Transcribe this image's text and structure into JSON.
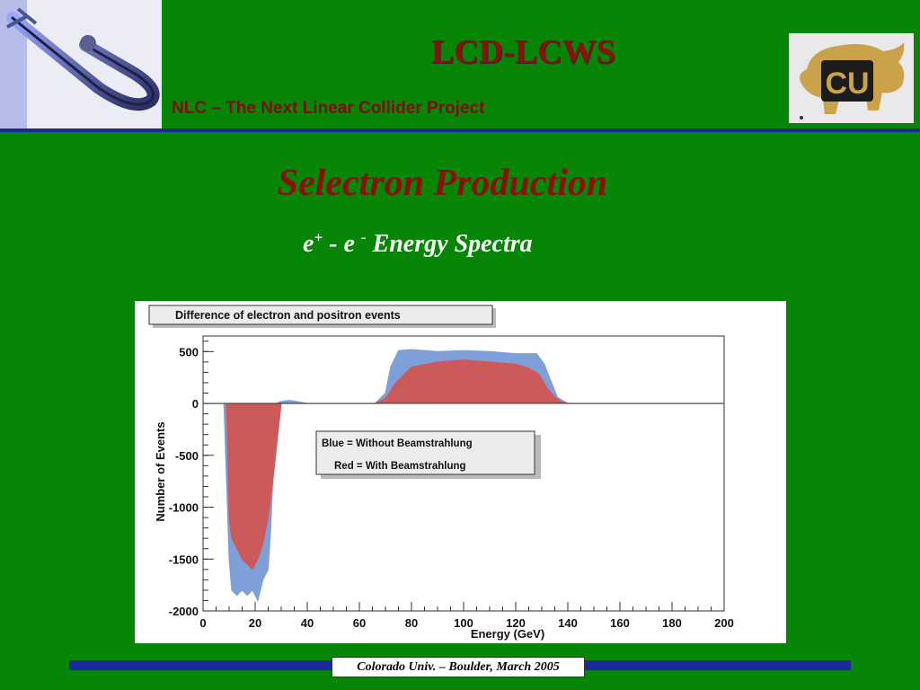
{
  "header": {
    "title": "LCD-LCWS",
    "subtitle": "NLC – The Next Linear Collider Project"
  },
  "logos": {
    "left": "nlc-logo",
    "right": "cu-buffalo-logo",
    "right_text": "CU"
  },
  "slide": {
    "title": "Selectron Production",
    "subtitle_e1": "e",
    "subtitle_sup1": "+",
    "subtitle_mid": " - e ",
    "subtitle_sup2": "-",
    "subtitle_tail": " Energy Spectra"
  },
  "footer": {
    "text": "Colorado Univ. – Boulder, March 2005"
  },
  "colors": {
    "background": "#068506",
    "title_red": "#8b1010",
    "rule_blue": "#1a2a9a",
    "blue_series": "#7f9fd8",
    "red_series": "#cd5a5a"
  },
  "chart_data": {
    "type": "area",
    "title": "Difference of electron and positron events",
    "xlabel": "Energy (GeV)",
    "ylabel": "Number of Events",
    "xlim": [
      0,
      200
    ],
    "ylim": [
      -2000,
      650
    ],
    "xticks": [
      "0",
      "20",
      "40",
      "60",
      "80",
      "100",
      "120",
      "140",
      "160",
      "180",
      "200"
    ],
    "yticks": [
      "500",
      "0",
      "-500",
      "-1000",
      "-1500",
      "-2000"
    ],
    "legend": [
      "Blue = Without Beamstrahlung",
      "Red = With Beamstrahlung"
    ],
    "legend_position": "center",
    "series": [
      {
        "name": "Blue = Without Beamstrahlung",
        "color": "#7f9fd8",
        "x": [
          0,
          8,
          10,
          11,
          13,
          15,
          17,
          19,
          21,
          23,
          25,
          26,
          28,
          30,
          33,
          36,
          40,
          44,
          66,
          70,
          72,
          75,
          80,
          90,
          100,
          110,
          120,
          128,
          131,
          133,
          136,
          140,
          143,
          200
        ],
        "y": [
          0,
          0,
          -1500,
          -1800,
          -1850,
          -1800,
          -1850,
          -1800,
          -1900,
          -1700,
          -1600,
          -1200,
          0,
          20,
          30,
          20,
          0,
          0,
          0,
          100,
          350,
          510,
          520,
          500,
          510,
          500,
          480,
          480,
          380,
          250,
          60,
          0,
          0,
          0
        ]
      },
      {
        "name": "Red = With Beamstrahlung",
        "color": "#cd5a5a",
        "x": [
          0,
          9,
          10,
          11,
          13,
          15,
          17,
          19,
          21,
          23,
          25,
          27,
          30,
          66,
          70,
          74,
          80,
          90,
          100,
          110,
          120,
          125,
          129,
          132,
          135,
          138,
          141,
          200
        ],
        "y": [
          0,
          0,
          -1100,
          -1300,
          -1400,
          -1500,
          -1550,
          -1600,
          -1500,
          -1350,
          -1100,
          -700,
          0,
          0,
          50,
          200,
          350,
          400,
          420,
          400,
          380,
          340,
          280,
          150,
          60,
          10,
          0,
          0
        ]
      }
    ]
  }
}
